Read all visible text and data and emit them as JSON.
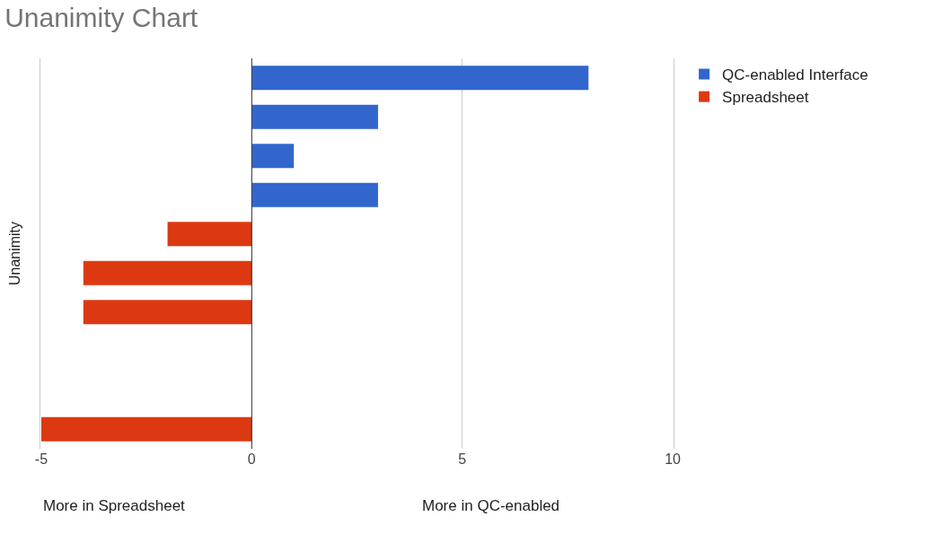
{
  "chart_data": {
    "type": "bar",
    "title": "Unanimity Chart",
    "ylabel": "Unanimity",
    "orientation": "horizontal",
    "stacked": true,
    "categories": [
      null,
      null,
      null,
      null,
      null,
      null,
      null,
      null,
      null,
      null
    ],
    "series": [
      {
        "name": "QC-enabled Interface",
        "color": "#3366cc",
        "values": [
          8,
          3,
          1,
          3,
          null,
          null,
          null,
          null,
          null,
          null
        ]
      },
      {
        "name": "Spreadsheet",
        "color": "#dc3912",
        "values": [
          null,
          null,
          null,
          null,
          -2,
          -4,
          -4,
          null,
          null,
          -5
        ]
      }
    ],
    "xlim": [
      -5.02,
      10.02
    ],
    "xticks": [
      -5,
      0,
      5,
      10
    ],
    "grid": "x",
    "legend": "top right",
    "annotations": [
      "More in Spreadsheet",
      "More in QC-enabled"
    ]
  }
}
